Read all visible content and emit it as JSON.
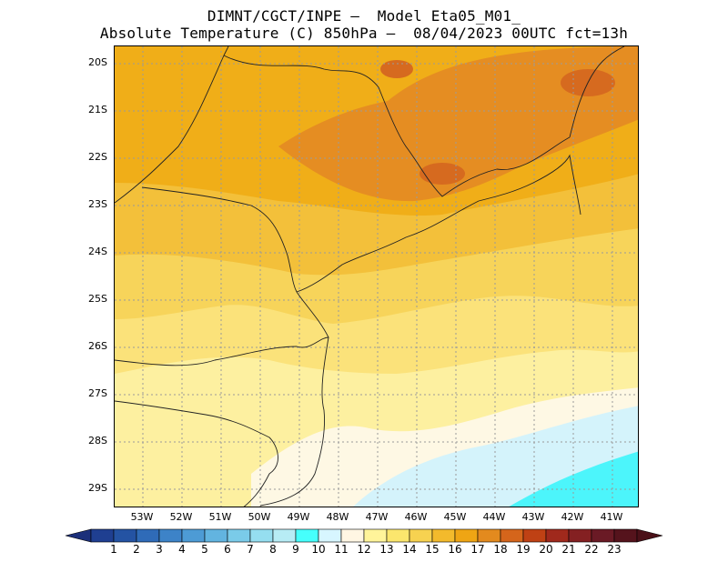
{
  "header": {
    "line1": "DIMNT/CGCT/INPE –  Model Eta05_M01_",
    "line2": "Absolute Temperature (C) 850hPa –  08/04/2023 00UTC fct=13h"
  },
  "map": {
    "lat_labels": [
      "20S",
      "21S",
      "22S",
      "23S",
      "24S",
      "25S",
      "26S",
      "27S",
      "28S",
      "29S"
    ],
    "lon_labels": [
      "53W",
      "52W",
      "51W",
      "50W",
      "49W",
      "48W",
      "47W",
      "46W",
      "45W",
      "44W",
      "43W",
      "42W",
      "41W"
    ]
  },
  "colorbar": {
    "ticks": [
      "1",
      "2",
      "3",
      "4",
      "5",
      "6",
      "7",
      "8",
      "9",
      "10",
      "11",
      "12",
      "13",
      "14",
      "15",
      "16",
      "17",
      "18",
      "19",
      "20",
      "21",
      "22",
      "23"
    ],
    "colors": [
      "#1f3f91",
      "#2453a3",
      "#2f6bb8",
      "#3d83c8",
      "#4d9bd5",
      "#62b4e0",
      "#7acbe9",
      "#95def0",
      "#b7ecf5",
      "#46fffc",
      "#d7f6ff",
      "#fff6e3",
      "#fff49a",
      "#fbe66d",
      "#f7d250",
      "#f3ba2c",
      "#efa514",
      "#e38a1e",
      "#d5651b",
      "#bf4114",
      "#a0291c",
      "#842022",
      "#6a1a25",
      "#55131c"
    ],
    "left_cap_color": "#1b2f7a",
    "right_cap_color": "#4a1018"
  }
}
